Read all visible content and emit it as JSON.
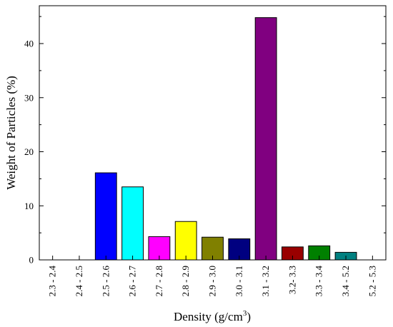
{
  "chart_data": {
    "type": "bar",
    "xlabel": "Density (g/cm",
    "xlabel_sup": "3",
    "xlabel_end": ")",
    "ylabel": "Weight of Particles (%)",
    "ylim": [
      0,
      47
    ],
    "yticks": [
      0,
      10,
      20,
      30,
      40
    ],
    "grid": false,
    "categories": [
      "2.3 - 2.4",
      "2.4 - 2.5",
      "2.5 - 2.6",
      "2.6 - 2.7",
      "2.7 - 2.8",
      "2.8 - 2.9",
      "2.9 - 3.0",
      "3.0 - 3.1",
      "3.1 - 3.2",
      "3.2- 3.3",
      "3.3 - 3.4",
      "3.4 - 5.2",
      "5.2 - 5.3"
    ],
    "values": [
      0,
      0,
      16.1,
      13.5,
      4.3,
      7.1,
      4.2,
      3.9,
      44.8,
      2.4,
      2.6,
      1.4,
      0
    ],
    "colors": [
      "#808080",
      "#808080",
      "#0000ff",
      "#00ffff",
      "#ff00ff",
      "#ffff00",
      "#808000",
      "#000080",
      "#800080",
      "#990000",
      "#008000",
      "#008080",
      "#808080"
    ]
  }
}
